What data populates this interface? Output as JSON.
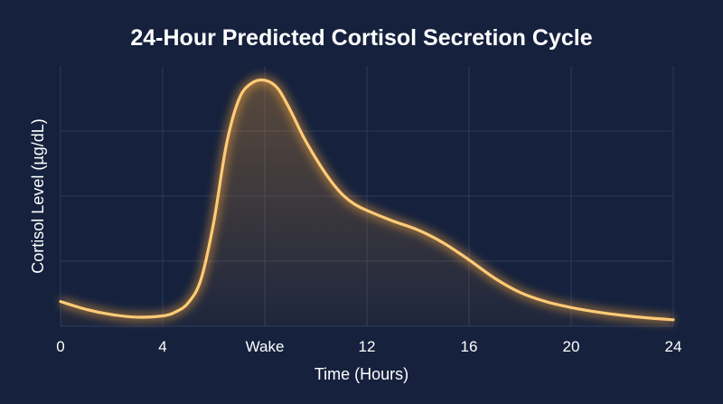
{
  "chart_data": {
    "type": "line",
    "title": "24-Hour Predicted Cortisol Secretion Cycle",
    "xlabel": "Time (Hours)",
    "ylabel": "Cortisol Level (µg/dL)",
    "xlim": [
      0,
      24
    ],
    "ylim": [
      0,
      1
    ],
    "y_tick_labels_shown": false,
    "x_ticks": [
      {
        "value": 0,
        "label": "0"
      },
      {
        "value": 4,
        "label": "4"
      },
      {
        "value": 8,
        "label": "Wake"
      },
      {
        "value": 12,
        "label": "12"
      },
      {
        "value": 16,
        "label": "16"
      },
      {
        "value": 20,
        "label": "20"
      },
      {
        "value": 24,
        "label": "24"
      }
    ],
    "y_gridlines": [
      0.25,
      0.5,
      0.75
    ],
    "grid": true,
    "legend": "none",
    "series": [
      {
        "x": [
          0,
          1,
          2,
          3,
          4,
          4.5,
          5,
          5.5,
          6,
          6.5,
          7,
          7.5,
          8,
          8.5,
          9,
          9.5,
          10,
          10.5,
          11,
          11.5,
          12,
          13,
          14,
          15,
          16,
          17,
          18,
          19,
          20,
          21,
          22,
          23,
          24
        ],
        "values": [
          0.095,
          0.065,
          0.045,
          0.035,
          0.04,
          0.055,
          0.09,
          0.18,
          0.4,
          0.7,
          0.875,
          0.935,
          0.945,
          0.915,
          0.83,
          0.73,
          0.645,
          0.57,
          0.51,
          0.47,
          0.445,
          0.405,
          0.37,
          0.32,
          0.255,
          0.185,
          0.13,
          0.095,
          0.072,
          0.055,
          0.042,
          0.032,
          0.025
        ]
      }
    ],
    "colors": {
      "background": "#15213d",
      "grid": "#2c3a5c",
      "line": "#ffcb78",
      "glow": "#f5a53c",
      "text": "#ffffff"
    }
  }
}
